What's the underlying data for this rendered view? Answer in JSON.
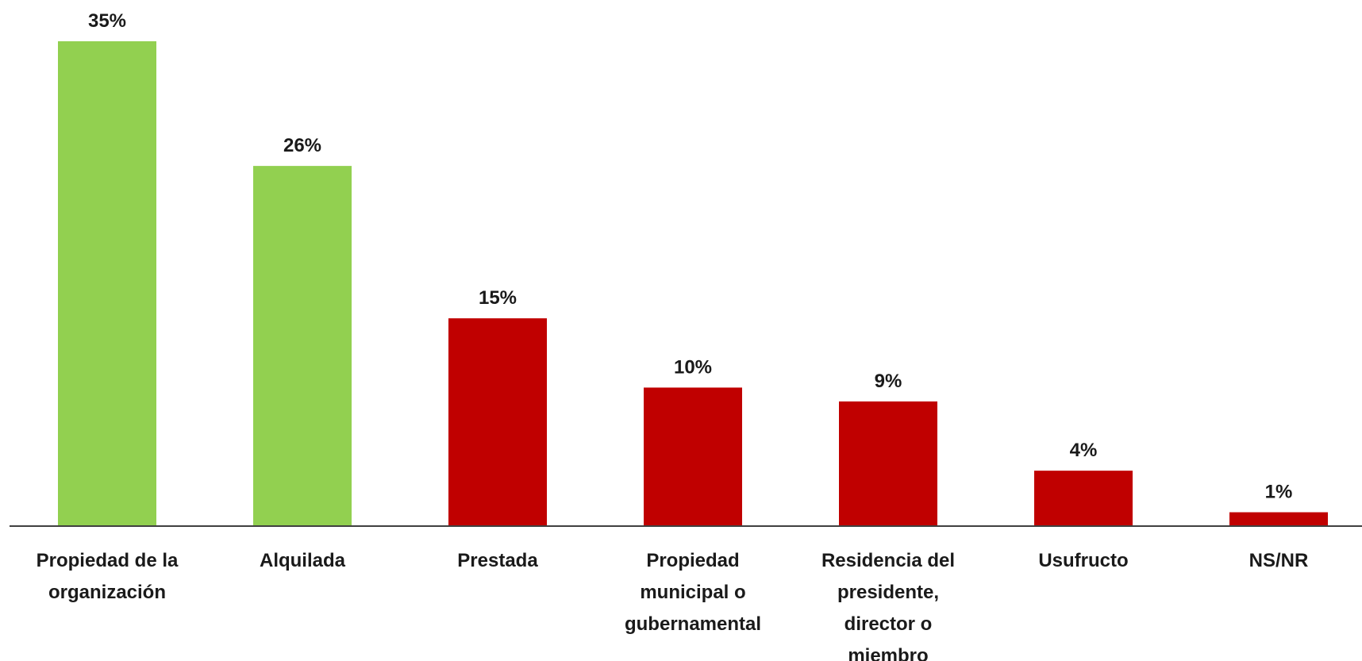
{
  "chart_data": {
    "type": "bar",
    "categories": [
      [
        "Propiedad de la",
        "organización"
      ],
      [
        "Alquilada"
      ],
      [
        "Prestada"
      ],
      [
        "Propiedad",
        "municipal o",
        "gubernamental"
      ],
      [
        "Residencia del",
        "presidente,",
        "director o",
        "miembro"
      ],
      [
        "Usufructo"
      ],
      [
        "NS/NR"
      ]
    ],
    "values": [
      35,
      26,
      15,
      10,
      9,
      4,
      1
    ],
    "value_labels": [
      "35%",
      "26%",
      "15%",
      "10%",
      "9%",
      "4%",
      "1%"
    ],
    "colors": [
      "#92d050",
      "#92d050",
      "#c00000",
      "#c00000",
      "#c00000",
      "#c00000",
      "#c00000"
    ],
    "title": "",
    "xlabel": "",
    "ylabel": "",
    "ylim": [
      0,
      35
    ],
    "grid": false,
    "legend": "none"
  }
}
